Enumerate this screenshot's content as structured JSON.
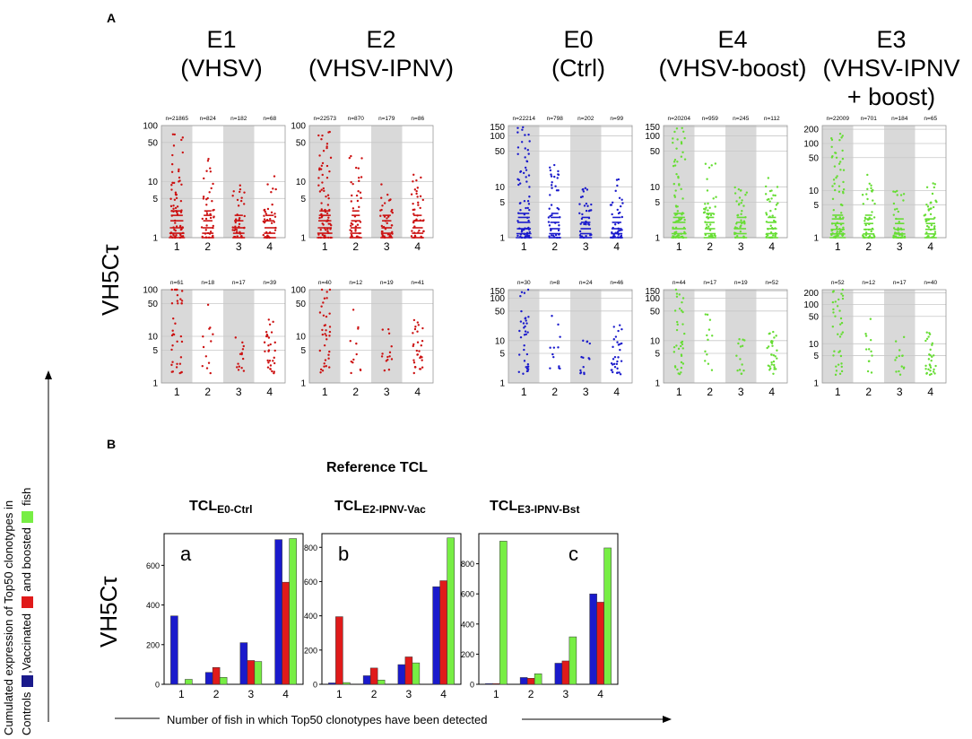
{
  "panel_a_label": "A",
  "panel_b_label": "B",
  "y_axis_label_a": "VH5Cτ",
  "y_axis_label_b": "VH5Cτ",
  "groups": [
    {
      "id": "E1",
      "line1": "E1",
      "line2": "(VHSV)",
      "line3": ""
    },
    {
      "id": "E2",
      "line1": "E2",
      "line2": "(VHSV-IPNV)",
      "line3": ""
    },
    {
      "id": "E0",
      "line1": "E0",
      "line2": "(Ctrl)",
      "line3": ""
    },
    {
      "id": "E4",
      "line1": "E4",
      "line2": "(VHSV-boost)",
      "line3": ""
    },
    {
      "id": "E3",
      "line1": "E3",
      "line2": "(VHSV-IPNV",
      "line3": "+ boost)"
    }
  ],
  "colors": {
    "E1": "#cc1111",
    "E2": "#cc1111",
    "E0": "#1a1acc",
    "E4": "#66dd33",
    "E3": "#66dd33",
    "controls": "#1a1acc",
    "vaccinated": "#e01a1a",
    "boosted": "#77ee44",
    "shade": "#d9d9d9"
  },
  "scatter_panels": [
    {
      "group": "E1",
      "row": "top",
      "yticks": [
        "1",
        "5",
        "10",
        "50",
        "100"
      ],
      "n": [
        "n=21865",
        "n=824",
        "n=182",
        "n=68"
      ]
    },
    {
      "group": "E2",
      "row": "top",
      "yticks": [
        "1",
        "5",
        "10",
        "50",
        "100"
      ],
      "n": [
        "n=22573",
        "n=870",
        "n=179",
        "n=86"
      ]
    },
    {
      "group": "E0",
      "row": "top",
      "yticks": [
        "1",
        "5",
        "10",
        "50",
        "100",
        "150"
      ],
      "n": [
        "n=22214",
        "n=798",
        "n=202",
        "n=99"
      ]
    },
    {
      "group": "E4",
      "row": "top",
      "yticks": [
        "1",
        "5",
        "10",
        "50",
        "100",
        "150"
      ],
      "n": [
        "n=20204",
        "n=959",
        "n=245",
        "n=112"
      ]
    },
    {
      "group": "E3",
      "row": "top",
      "yticks": [
        "1",
        "5",
        "10",
        "50",
        "100",
        "200"
      ],
      "n": [
        "n=22009",
        "n=701",
        "n=184",
        "n=65"
      ]
    },
    {
      "group": "E1",
      "row": "bottom",
      "yticks": [
        "1",
        "5",
        "10",
        "50",
        "100"
      ],
      "n": [
        "n=61",
        "n=18",
        "n=17",
        "n=39"
      ]
    },
    {
      "group": "E2",
      "row": "bottom",
      "yticks": [
        "1",
        "5",
        "10",
        "50",
        "100"
      ],
      "n": [
        "n=40",
        "n=12",
        "n=19",
        "n=41"
      ]
    },
    {
      "group": "E0",
      "row": "bottom",
      "yticks": [
        "1",
        "5",
        "10",
        "50",
        "100",
        "150"
      ],
      "n": [
        "n=30",
        "n=8",
        "n=24",
        "n=46"
      ]
    },
    {
      "group": "E4",
      "row": "bottom",
      "yticks": [
        "1",
        "5",
        "10",
        "50",
        "100",
        "150"
      ],
      "n": [
        "n=44",
        "n=17",
        "n=19",
        "n=52"
      ]
    },
    {
      "group": "E3",
      "row": "bottom",
      "yticks": [
        "1",
        "5",
        "10",
        "50",
        "100",
        "200"
      ],
      "n": [
        "n=52",
        "n=12",
        "n=17",
        "n=40"
      ]
    }
  ],
  "x_categories": [
    "1",
    "2",
    "3",
    "4"
  ],
  "reference_title": "Reference TCL",
  "left_caption": {
    "line1": "Cumulated expression of Top50 clonotypes in",
    "line2_pre": "Controls",
    "line2_mid": ",Vaccinated",
    "line2_mid2": "and boosted",
    "line2_post": "fish"
  },
  "x_caption": "Number of fish in which Top50 clonotypes have been detected",
  "chart_data": [
    {
      "type": "bar",
      "title_main": "TCL",
      "title_sub": "E0-Ctrl",
      "panel_letter": "a",
      "categories": [
        "1",
        "2",
        "3",
        "4"
      ],
      "yticks": [
        "0",
        "200",
        "400",
        "600"
      ],
      "ylim": [
        0,
        760
      ],
      "series": [
        {
          "name": "Controls",
          "values": [
            345,
            60,
            210,
            730
          ]
        },
        {
          "name": "Vaccinated",
          "values": [
            2,
            85,
            120,
            515
          ]
        },
        {
          "name": "Boosted",
          "values": [
            25,
            35,
            115,
            735
          ]
        }
      ]
    },
    {
      "type": "bar",
      "title_main": "TCL",
      "title_sub": "E2-IPNV-Vac",
      "panel_letter": "b",
      "categories": [
        "1",
        "2",
        "3",
        "4"
      ],
      "yticks": [
        "0",
        "200",
        "400",
        "600",
        "800"
      ],
      "ylim": [
        0,
        880
      ],
      "series": [
        {
          "name": "Controls",
          "values": [
            8,
            50,
            115,
            570
          ]
        },
        {
          "name": "Vaccinated",
          "values": [
            395,
            95,
            160,
            605
          ]
        },
        {
          "name": "Boosted",
          "values": [
            10,
            25,
            125,
            855
          ]
        }
      ]
    },
    {
      "type": "bar",
      "title_main": "TCL",
      "title_sub": "E3-IPNV-Bst",
      "panel_letter": "c",
      "categories": [
        "1",
        "2",
        "3",
        "4"
      ],
      "yticks": [
        "0",
        "200",
        "400",
        "600",
        "800"
      ],
      "ylim": [
        0,
        1000
      ],
      "series": [
        {
          "name": "Controls",
          "values": [
            5,
            45,
            140,
            600
          ]
        },
        {
          "name": "Vaccinated",
          "values": [
            5,
            40,
            155,
            545
          ]
        },
        {
          "name": "Boosted",
          "values": [
            950,
            70,
            315,
            905
          ]
        }
      ]
    }
  ]
}
